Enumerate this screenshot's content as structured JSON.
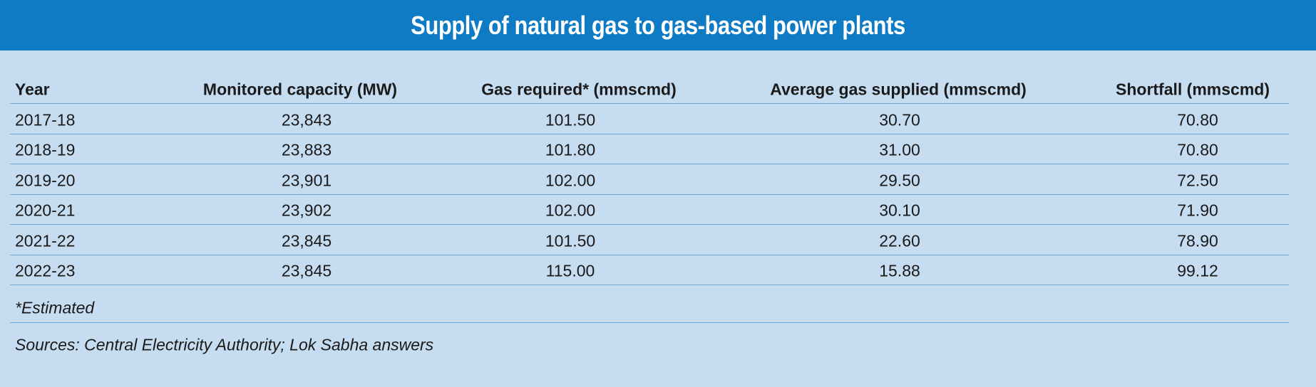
{
  "title": "Supply of natural gas to gas-based power plants",
  "table": {
    "header": [
      "Year",
      "Monitored capacity (MW)",
      "Gas required* (mmscmd)",
      "Average gas supplied (mmscmd)",
      "Shortfall (mmscmd)"
    ],
    "rows": [
      [
        "2017-18",
        "23,843",
        "101.50",
        "30.70",
        "70.80"
      ],
      [
        "2018-19",
        "23,883",
        "101.80",
        "31.00",
        "70.80"
      ],
      [
        "2019-20",
        "23,901",
        "102.00",
        "29.50",
        "72.50"
      ],
      [
        "2020-21",
        "23,902",
        "102.00",
        "30.10",
        "71.90"
      ],
      [
        "2021-22",
        "23,845",
        "101.50",
        "22.60",
        "78.90"
      ],
      [
        "2022-23",
        "23,845",
        "115.00",
        "15.88",
        "99.12"
      ]
    ]
  },
  "footnote": "*Estimated",
  "sources": "Sources: Central Electricity Authority; Lok Sabha answers"
}
